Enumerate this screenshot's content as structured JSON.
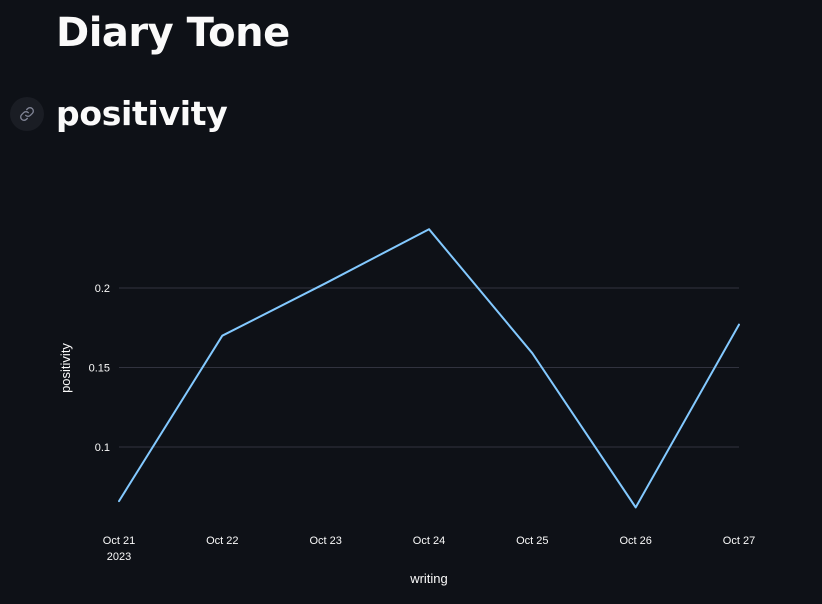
{
  "page": {
    "title": "Diary Tone",
    "subheader": "positivity",
    "link_icon": "link-icon"
  },
  "colors": {
    "background": "#0e1117",
    "text": "#fafafa",
    "line": "#83c9ff",
    "grid": "#31333f"
  },
  "chart_data": {
    "type": "line",
    "xlabel": "writing",
    "ylabel": "positivity",
    "x": [
      "2023-10-21",
      "2023-10-22",
      "2023-10-23",
      "2023-10-24",
      "2023-10-25",
      "2023-10-26",
      "2023-10-27"
    ],
    "x_tick_labels": [
      "Oct 21",
      "Oct 22",
      "Oct 23",
      "Oct 24",
      "Oct 25",
      "Oct 26",
      "Oct 27"
    ],
    "x_year_label": "2023",
    "series": [
      {
        "values": [
          0.066,
          0.17,
          0.203,
          0.237,
          0.159,
          0.062,
          0.177
        ]
      }
    ],
    "y_ticks": [
      0.1,
      0.15,
      0.2
    ],
    "y_tick_labels": [
      "0.1",
      "0.15",
      "0.2"
    ],
    "grid": true
  }
}
